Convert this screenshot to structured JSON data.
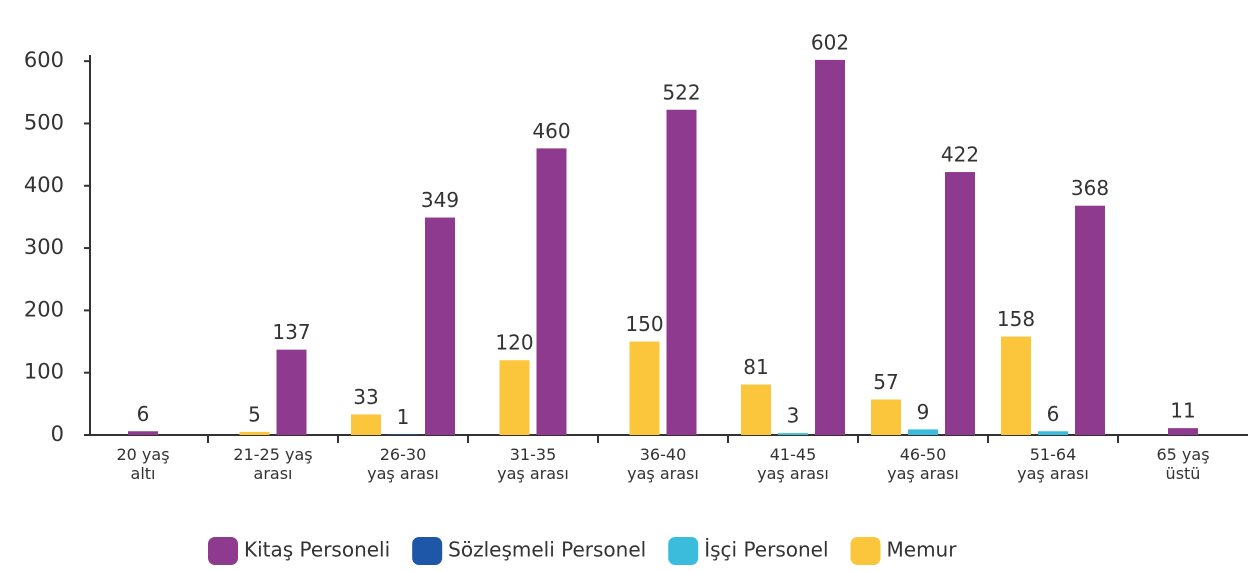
{
  "chart_data": {
    "type": "bar",
    "categories": [
      [
        "20 yaş",
        "altı"
      ],
      [
        "21-25 yaş",
        "arası"
      ],
      [
        "26-30",
        "yaş arası"
      ],
      [
        "31-35",
        "yaş arası"
      ],
      [
        "36-40",
        "yaş arası"
      ],
      [
        "41-45",
        "yaş arası"
      ],
      [
        "46-50",
        "yaş arası"
      ],
      [
        "51-64",
        "yaş arası"
      ],
      [
        "65 yaş",
        "üstü"
      ]
    ],
    "series": [
      {
        "name": "Kitaş Personeli",
        "color": "#8e3a8e",
        "values": [
          6,
          137,
          349,
          460,
          522,
          602,
          422,
          368,
          11
        ]
      },
      {
        "name": "Sözleşmeli Personel",
        "color": "#1f57a8",
        "values": [
          null,
          null,
          1,
          null,
          null,
          null,
          null,
          null,
          null
        ]
      },
      {
        "name": "İşçi Personel",
        "color": "#3bbcdc",
        "values": [
          null,
          null,
          null,
          null,
          null,
          3,
          9,
          6,
          null
        ]
      },
      {
        "name": "Memur",
        "color": "#fbc63c",
        "values": [
          null,
          5,
          33,
          120,
          150,
          81,
          57,
          158,
          null
        ]
      }
    ],
    "ylim": [
      0,
      650
    ],
    "yticks": [
      0,
      100,
      200,
      300,
      400,
      500,
      600
    ],
    "legend": "bottom"
  }
}
